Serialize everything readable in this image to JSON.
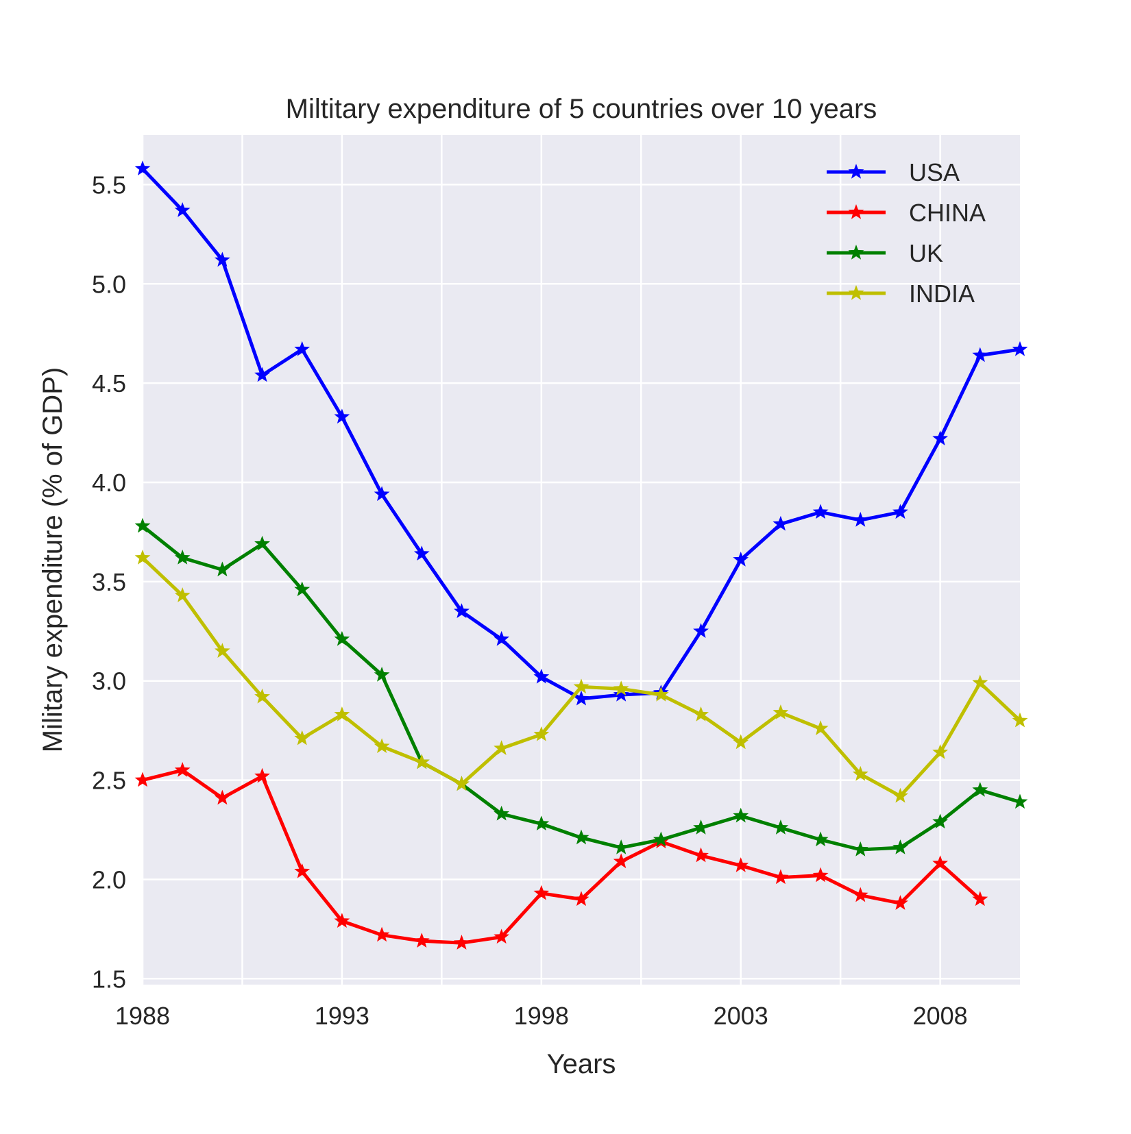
{
  "chart_data": {
    "type": "line",
    "title": "Miltitary expenditure of 5 countries over 10 years",
    "xlabel": "Years",
    "ylabel": "Military expenditure (% of GDP)",
    "xlim": [
      1988,
      2010
    ],
    "ylim": [
      1.47,
      5.75
    ],
    "xticks": [
      1988,
      1993,
      1998,
      2003,
      2008
    ],
    "xgrid": [
      1988,
      1990.5,
      1993,
      1995.5,
      1998,
      2000.5,
      2003,
      2005.5,
      2008
    ],
    "yticks": [
      1.5,
      2.0,
      2.5,
      3.0,
      3.5,
      4.0,
      4.5,
      5.0,
      5.5
    ],
    "ytick_labels": [
      "1.5",
      "2.0",
      "2.5",
      "3.0",
      "3.5",
      "4.0",
      "4.5",
      "5.0",
      "5.5"
    ],
    "grid": true,
    "legend_position": "top-right",
    "marker": "star",
    "x": [
      1988,
      1989,
      1990,
      1991,
      1992,
      1993,
      1994,
      1995,
      1996,
      1997,
      1998,
      1999,
      2000,
      2001,
      2002,
      2003,
      2004,
      2005,
      2006,
      2007,
      2008,
      2009,
      2010
    ],
    "series": [
      {
        "name": "USA",
        "color": "#0000ff",
        "values": [
          5.58,
          5.37,
          5.12,
          4.54,
          4.67,
          4.33,
          3.94,
          3.64,
          3.35,
          3.21,
          3.02,
          2.91,
          2.93,
          2.94,
          3.25,
          3.61,
          3.79,
          3.85,
          3.81,
          3.85,
          4.22,
          4.64,
          4.67
        ]
      },
      {
        "name": "CHINA",
        "color": "#ff0000",
        "values": [
          2.5,
          2.55,
          2.41,
          2.52,
          2.04,
          1.79,
          1.72,
          1.69,
          1.68,
          1.71,
          1.93,
          1.9,
          2.09,
          2.19,
          2.12,
          2.07,
          2.01,
          2.02,
          1.92,
          1.88,
          2.08,
          1.9,
          null
        ]
      },
      {
        "name": "UK",
        "color": "#008000",
        "values": [
          3.78,
          3.62,
          3.56,
          3.69,
          3.46,
          3.21,
          3.03,
          2.59,
          2.48,
          2.33,
          2.28,
          2.21,
          2.16,
          2.2,
          2.26,
          2.32,
          2.26,
          2.2,
          2.15,
          2.16,
          2.29,
          2.45,
          2.39
        ]
      },
      {
        "name": "INDIA",
        "color": "#bfbf00",
        "values": [
          3.62,
          3.43,
          3.15,
          2.92,
          2.71,
          2.83,
          2.67,
          2.59,
          2.48,
          2.66,
          2.73,
          2.97,
          2.96,
          2.93,
          2.83,
          2.69,
          2.84,
          2.76,
          2.53,
          2.42,
          2.64,
          2.99,
          2.8
        ]
      }
    ]
  }
}
